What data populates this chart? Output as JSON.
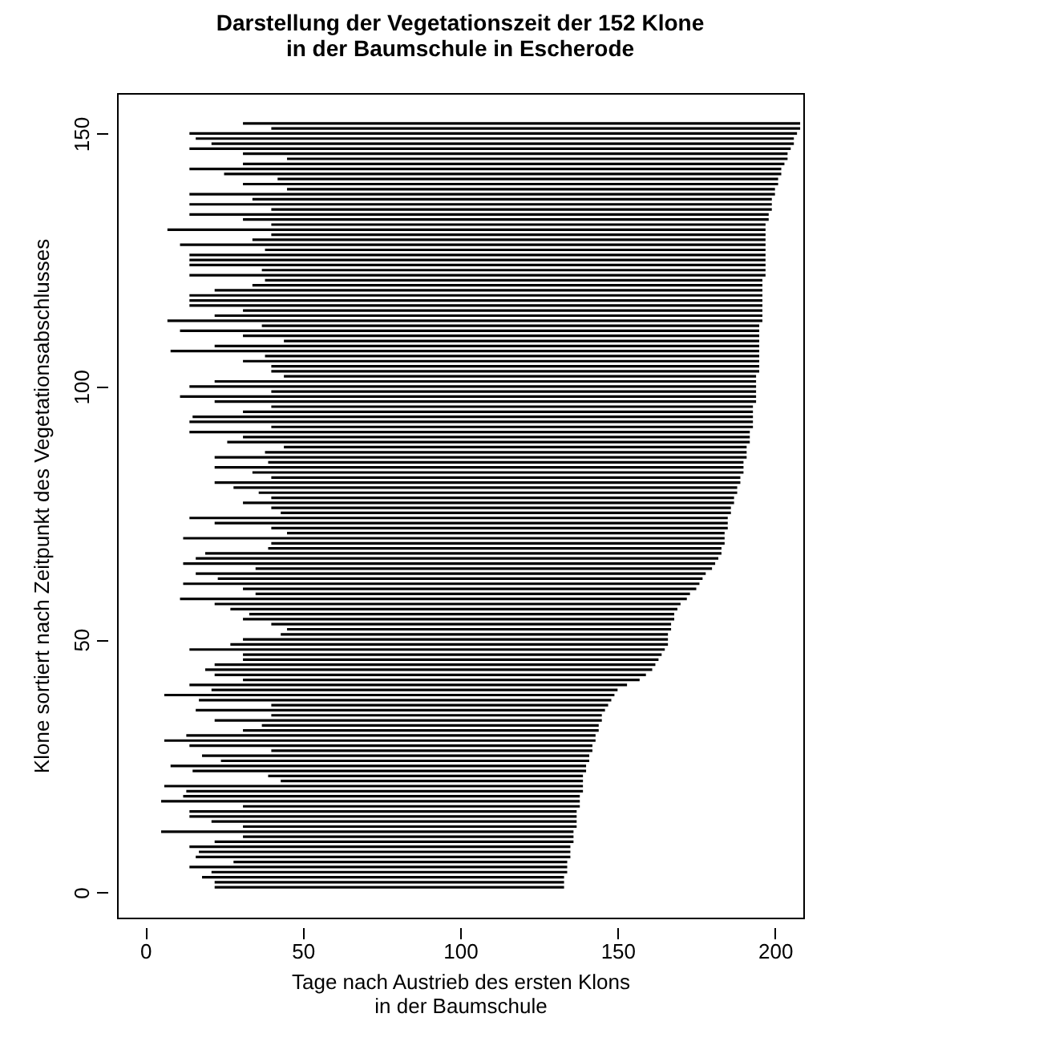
{
  "chart_data": {
    "type": "bar",
    "orientation": "horizontal",
    "title": "Darstellung der Vegetationszeit der 152 Klone\nin der Baumschule in Escherode",
    "xlabel": "Tage nach Austrieb des ersten Klons\nin der Baumschule",
    "ylabel": "Klone sortiert nach Zeitpunkt des Vegetationsabschlusses",
    "x": [
      1,
      2,
      3,
      4,
      5,
      6,
      7,
      8,
      9,
      10,
      11,
      12,
      13,
      14,
      15,
      16,
      17,
      18,
      19,
      20,
      21,
      22,
      23,
      24,
      25,
      26,
      27,
      28,
      29,
      30,
      31,
      32,
      33,
      34,
      35,
      36,
      37,
      38,
      39,
      40,
      41,
      42,
      43,
      44,
      45,
      46,
      47,
      48,
      49,
      50,
      51,
      52,
      53,
      54,
      55,
      56,
      57,
      58,
      59,
      60,
      61,
      62,
      63,
      64,
      65,
      66,
      67,
      68,
      69,
      70,
      71,
      72,
      73,
      74,
      75,
      76,
      77,
      78,
      79,
      80,
      81,
      82,
      83,
      84,
      85,
      86,
      87,
      88,
      89,
      90,
      91,
      92,
      93,
      94,
      95,
      96,
      97,
      98,
      99,
      100,
      101,
      102,
      103,
      104,
      105,
      106,
      107,
      108,
      109,
      110,
      111,
      112,
      113,
      114,
      115,
      116,
      117,
      118,
      119,
      120,
      121,
      122,
      123,
      124,
      125,
      126,
      127,
      128,
      129,
      130,
      131,
      132,
      133,
      134,
      135,
      136,
      137,
      138,
      139,
      140,
      141,
      142,
      143,
      144,
      145,
      146,
      147,
      148,
      149,
      150,
      151,
      152
    ],
    "base": [
      22,
      22,
      18,
      21,
      14,
      28,
      16,
      17,
      14,
      22,
      31,
      5,
      31,
      21,
      14,
      14,
      31,
      5,
      12,
      13,
      6,
      43,
      39,
      15,
      8,
      24,
      18,
      40,
      14,
      6,
      13,
      31,
      37,
      22,
      40,
      16,
      40,
      17,
      6,
      21,
      14,
      31,
      22,
      19,
      22,
      31,
      31,
      14,
      27,
      31,
      43,
      45,
      40,
      31,
      33,
      27,
      22,
      11,
      35,
      31,
      12,
      23,
      16,
      35,
      12,
      16,
      19,
      39,
      40,
      12,
      45,
      40,
      22,
      14,
      43,
      40,
      31,
      40,
      36,
      28,
      22,
      40,
      34,
      22,
      39,
      22,
      38,
      44,
      26,
      31,
      14,
      40,
      14,
      15,
      31,
      40,
      22,
      11,
      40,
      14,
      22,
      44,
      40,
      40,
      31,
      38,
      8,
      22,
      44,
      31,
      11,
      37,
      7,
      22,
      31,
      14,
      14,
      14,
      22,
      34,
      38,
      14,
      37,
      14,
      14,
      14,
      38,
      11,
      34,
      40,
      7,
      40,
      31,
      14,
      40,
      14,
      34,
      14,
      45,
      31,
      42,
      25,
      14,
      31,
      45,
      31,
      14,
      21,
      16,
      14,
      40,
      31
    ],
    "values": [
      111,
      111,
      115,
      113,
      120,
      106,
      119,
      118,
      121,
      114,
      105,
      131,
      106,
      116,
      123,
      123,
      107,
      133,
      126,
      126,
      133,
      96,
      100,
      125,
      132,
      117,
      123,
      102,
      128,
      137,
      130,
      113,
      107,
      123,
      105,
      130,
      107,
      131,
      143,
      129,
      139,
      126,
      137,
      142,
      140,
      132,
      133,
      151,
      139,
      135,
      123,
      122,
      127,
      137,
      135,
      142,
      148,
      161,
      138,
      144,
      164,
      154,
      162,
      145,
      169,
      166,
      164,
      144,
      144,
      172,
      139,
      145,
      163,
      171,
      143,
      146,
      156,
      147,
      152,
      160,
      167,
      149,
      156,
      168,
      151,
      169,
      153,
      147,
      166,
      161,
      178,
      153,
      179,
      178,
      162,
      153,
      172,
      183,
      154,
      180,
      172,
      150,
      155,
      155,
      164,
      157,
      187,
      173,
      151,
      164,
      184,
      158,
      189,
      174,
      165,
      182,
      182,
      182,
      174,
      162,
      158,
      183,
      160,
      183,
      183,
      183,
      159,
      186,
      163,
      157,
      190,
      157,
      167,
      184,
      159,
      185,
      165,
      186,
      155,
      170,
      159,
      177,
      188,
      172,
      159,
      173,
      191,
      185,
      190,
      193,
      168,
      177
    ],
    "color": "#000000",
    "xlim": [
      -9,
      209
    ],
    "xticks": [
      0,
      50,
      100,
      150,
      200
    ],
    "ylim": [
      -5,
      158
    ],
    "yticks": [
      0,
      50,
      100,
      150
    ]
  }
}
